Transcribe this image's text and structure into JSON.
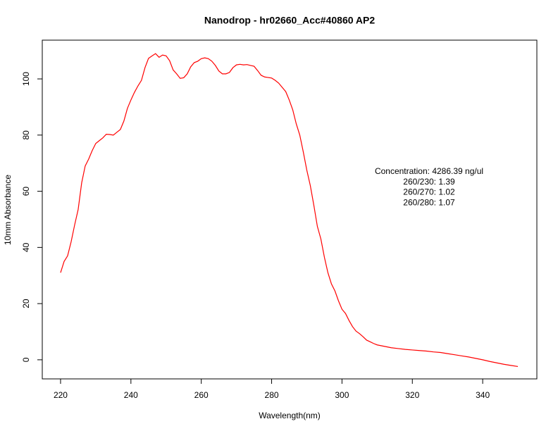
{
  "chart_data": {
    "type": "line",
    "title": "Nanodrop - hr02660_Acc#40860 AP2",
    "xlabel": "Wavelength(nm)",
    "ylabel": "10mm Absorbance",
    "annotations": [
      "Concentration: 4286.39 ng/ul",
      "260/230: 1.39",
      "260/270: 1.02",
      "260/280: 1.07"
    ],
    "color": "#ff0000",
    "x": [
      220,
      221,
      222,
      223,
      224,
      225,
      226,
      227,
      228,
      229,
      230,
      231,
      232,
      233,
      234,
      235,
      236,
      237,
      238,
      239,
      240,
      241,
      242,
      243,
      244,
      245,
      246,
      247,
      248,
      249,
      250,
      251,
      252,
      253,
      254,
      255,
      256,
      257,
      258,
      259,
      260,
      261,
      262,
      263,
      264,
      265,
      266,
      267,
      268,
      269,
      270,
      271,
      272,
      273,
      274,
      275,
      276,
      277,
      278,
      279,
      280,
      281,
      282,
      283,
      284,
      285,
      286,
      287,
      288,
      289,
      290,
      291,
      292,
      293,
      294,
      295,
      296,
      297,
      298,
      299,
      300,
      301,
      302,
      303,
      304,
      305,
      306,
      307,
      308,
      309,
      310,
      312,
      314,
      316,
      318,
      320,
      322,
      324,
      326,
      328,
      330,
      332,
      334,
      336,
      338,
      340,
      342,
      344,
      346,
      348,
      350
    ],
    "values": [
      31,
      35,
      37,
      42,
      48,
      53.5,
      63,
      69,
      71.5,
      74.5,
      77,
      78,
      79,
      80.3,
      80.2,
      80,
      81,
      82,
      85,
      89.5,
      92.5,
      95.2,
      97.5,
      99.5,
      104,
      107.3,
      108.2,
      109,
      107.7,
      108.5,
      108.2,
      106.5,
      103.2,
      101.8,
      100.2,
      100.4,
      101.8,
      104.3,
      105.8,
      106.3,
      107.2,
      107.5,
      107.2,
      106.3,
      104.8,
      102.8,
      101.8,
      101.8,
      102.3,
      104,
      105,
      105.2,
      105,
      105.1,
      104.8,
      104.5,
      103,
      101.3,
      100.7,
      100.5,
      100.3,
      99.5,
      98.5,
      97,
      95.5,
      92.5,
      89,
      84,
      80,
      74,
      67.5,
      62,
      55,
      47.5,
      43,
      36.5,
      31,
      27,
      24.5,
      21,
      18,
      16.5,
      14,
      11.8,
      10.2,
      9.3,
      8.2,
      7,
      6.4,
      5.8,
      5.3,
      4.8,
      4.3,
      4,
      3.7,
      3.5,
      3.3,
      3.1,
      2.8,
      2.6,
      2.2,
      1.8,
      1.4,
      1,
      0.5,
      0,
      -0.6,
      -1.1,
      -1.6,
      -2,
      -2.4
    ],
    "xlim": [
      214.8,
      355.4
    ],
    "ylim": [
      -6.8,
      113.8
    ],
    "xticks": [
      220,
      240,
      260,
      280,
      300,
      320,
      340
    ],
    "yticks": [
      0,
      20,
      40,
      60,
      80,
      100
    ],
    "grid": false
  }
}
